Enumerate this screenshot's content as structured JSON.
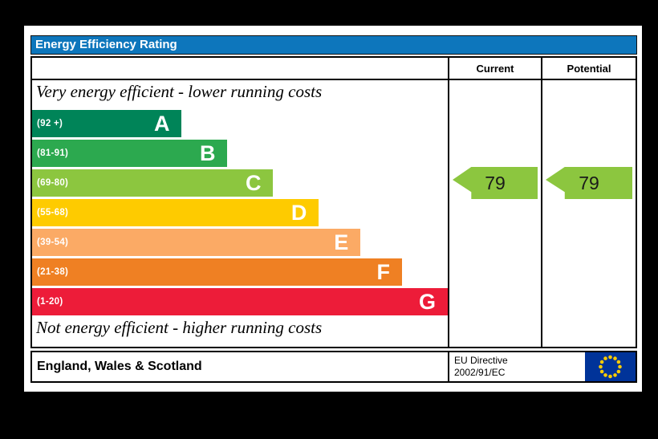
{
  "title": "Energy Efficiency Rating",
  "columns": {
    "current": "Current",
    "potential": "Potential"
  },
  "top_note": "Very energy efficient - lower running costs",
  "bottom_note": "Not energy efficient - higher running costs",
  "footer": {
    "region": "England, Wales & Scotland",
    "directive_line1": "EU Directive",
    "directive_line2": "2002/91/EC"
  },
  "colors": {
    "title_bar": "#0d76bc",
    "arrow": "#8cc63f",
    "flag_blue": "#003399",
    "flag_star": "#ffcc00",
    "border": "#000000"
  },
  "chart_data": {
    "type": "bar",
    "title": "Energy Efficiency Rating",
    "legend_position": "none",
    "bands": [
      {
        "letter": "A",
        "range": "(92 +)",
        "min": 92,
        "max": 100,
        "color": "#008458",
        "width_pct": 36
      },
      {
        "letter": "B",
        "range": "(81-91)",
        "min": 81,
        "max": 91,
        "color": "#2ca94f",
        "width_pct": 47
      },
      {
        "letter": "C",
        "range": "(69-80)",
        "min": 69,
        "max": 80,
        "color": "#8cc63f",
        "width_pct": 58
      },
      {
        "letter": "D",
        "range": "(55-68)",
        "min": 55,
        "max": 68,
        "color": "#fecb00",
        "width_pct": 69
      },
      {
        "letter": "E",
        "range": "(39-54)",
        "min": 39,
        "max": 54,
        "color": "#fbaa65",
        "width_pct": 79
      },
      {
        "letter": "F",
        "range": "(21-38)",
        "min": 21,
        "max": 38,
        "color": "#ef8023",
        "width_pct": 89
      },
      {
        "letter": "G",
        "range": "(1-20)",
        "min": 1,
        "max": 20,
        "color": "#ed1c39",
        "width_pct": 100
      }
    ],
    "current": {
      "value": 79,
      "band": "C"
    },
    "potential": {
      "value": 79,
      "band": "C"
    }
  }
}
